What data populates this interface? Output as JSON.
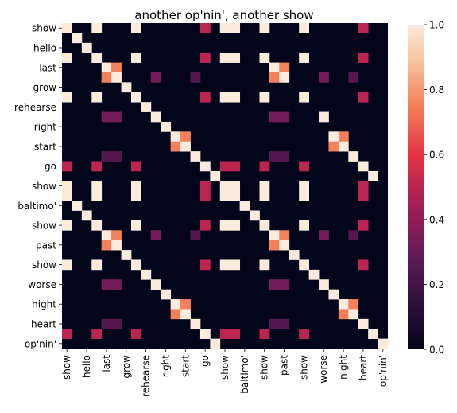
{
  "chart_data": {
    "type": "heatmap",
    "title": "another op'nin', another show",
    "xlabel": "",
    "ylabel": "",
    "x_tick_labels": [
      "show",
      "hello",
      "last",
      "grow",
      "rehearse",
      "right",
      "start",
      "go",
      "show",
      "baltimo'",
      "show",
      "past",
      "show",
      "worse",
      "night",
      "heart",
      "op'nin'"
    ],
    "y_tick_labels": [
      "show",
      "hello",
      "last",
      "grow",
      "rehearse",
      "right",
      "start",
      "go",
      "show",
      "baltimo'",
      "show",
      "past",
      "show",
      "worse",
      "night",
      "heart",
      "op'nin'"
    ],
    "rows": 33,
    "cols": 33,
    "value_range": [
      0.0,
      1.0
    ],
    "colorbar": {
      "ticks": [
        0.0,
        0.2,
        0.4,
        0.6,
        0.8,
        1.0
      ],
      "tick_labels": [
        "0.0",
        "0.2",
        "0.4",
        "0.6",
        "0.8",
        "1.0"
      ],
      "colormap": "rocket"
    },
    "cells": [
      {
        "r": 0,
        "c": 0,
        "v": 1
      },
      {
        "r": 0,
        "c": 3,
        "v": 1
      },
      {
        "r": 0,
        "c": 7,
        "v": 1
      },
      {
        "r": 0,
        "c": 14,
        "v": 0.5
      },
      {
        "r": 0,
        "c": 16,
        "v": 1
      },
      {
        "r": 0,
        "c": 17,
        "v": 1
      },
      {
        "r": 0,
        "c": 20,
        "v": 1
      },
      {
        "r": 0,
        "c": 24,
        "v": 1
      },
      {
        "r": 0,
        "c": 30,
        "v": 0.5
      },
      {
        "r": 1,
        "c": 1,
        "v": 1
      },
      {
        "r": 2,
        "c": 2,
        "v": 1
      },
      {
        "r": 3,
        "c": 0,
        "v": 1
      },
      {
        "r": 3,
        "c": 3,
        "v": 1
      },
      {
        "r": 3,
        "c": 7,
        "v": 1
      },
      {
        "r": 3,
        "c": 14,
        "v": 0.5
      },
      {
        "r": 3,
        "c": 16,
        "v": 1
      },
      {
        "r": 3,
        "c": 17,
        "v": 1
      },
      {
        "r": 3,
        "c": 20,
        "v": 1
      },
      {
        "r": 3,
        "c": 24,
        "v": 1
      },
      {
        "r": 3,
        "c": 30,
        "v": 0.5
      },
      {
        "r": 4,
        "c": 4,
        "v": 1
      },
      {
        "r": 4,
        "c": 5,
        "v": 0.75
      },
      {
        "r": 4,
        "c": 21,
        "v": 1
      },
      {
        "r": 4,
        "c": 22,
        "v": 0.75
      },
      {
        "r": 5,
        "c": 4,
        "v": 0.75
      },
      {
        "r": 5,
        "c": 5,
        "v": 1
      },
      {
        "r": 5,
        "c": 9,
        "v": 0.33
      },
      {
        "r": 5,
        "c": 13,
        "v": 0.25
      },
      {
        "r": 5,
        "c": 21,
        "v": 0.75
      },
      {
        "r": 5,
        "c": 22,
        "v": 1
      },
      {
        "r": 5,
        "c": 26,
        "v": 0.33
      },
      {
        "r": 5,
        "c": 29,
        "v": 0.25
      },
      {
        "r": 6,
        "c": 6,
        "v": 1
      },
      {
        "r": 7,
        "c": 0,
        "v": 1
      },
      {
        "r": 7,
        "c": 3,
        "v": 1
      },
      {
        "r": 7,
        "c": 7,
        "v": 1
      },
      {
        "r": 7,
        "c": 14,
        "v": 0.5
      },
      {
        "r": 7,
        "c": 16,
        "v": 1
      },
      {
        "r": 7,
        "c": 17,
        "v": 1
      },
      {
        "r": 7,
        "c": 20,
        "v": 1
      },
      {
        "r": 7,
        "c": 24,
        "v": 1
      },
      {
        "r": 7,
        "c": 30,
        "v": 0.5
      },
      {
        "r": 8,
        "c": 8,
        "v": 1
      },
      {
        "r": 9,
        "c": 4,
        "v": 0.33
      },
      {
        "r": 9,
        "c": 5,
        "v": 0.33
      },
      {
        "r": 9,
        "c": 9,
        "v": 1
      },
      {
        "r": 9,
        "c": 21,
        "v": 0.33
      },
      {
        "r": 9,
        "c": 22,
        "v": 0.33
      },
      {
        "r": 9,
        "c": 26,
        "v": 1
      },
      {
        "r": 10,
        "c": 10,
        "v": 1
      },
      {
        "r": 11,
        "c": 11,
        "v": 1
      },
      {
        "r": 11,
        "c": 12,
        "v": 0.75
      },
      {
        "r": 11,
        "c": 27,
        "v": 1
      },
      {
        "r": 11,
        "c": 28,
        "v": 0.75
      },
      {
        "r": 12,
        "c": 11,
        "v": 0.75
      },
      {
        "r": 12,
        "c": 12,
        "v": 1
      },
      {
        "r": 12,
        "c": 27,
        "v": 0.75
      },
      {
        "r": 12,
        "c": 28,
        "v": 1
      },
      {
        "r": 13,
        "c": 4,
        "v": 0.25
      },
      {
        "r": 13,
        "c": 5,
        "v": 0.25
      },
      {
        "r": 13,
        "c": 13,
        "v": 1
      },
      {
        "r": 13,
        "c": 21,
        "v": 0.25
      },
      {
        "r": 13,
        "c": 22,
        "v": 0.25
      },
      {
        "r": 13,
        "c": 29,
        "v": 1
      },
      {
        "r": 14,
        "c": 0,
        "v": 0.5
      },
      {
        "r": 14,
        "c": 3,
        "v": 0.5
      },
      {
        "r": 14,
        "c": 7,
        "v": 0.5
      },
      {
        "r": 14,
        "c": 14,
        "v": 1
      },
      {
        "r": 14,
        "c": 16,
        "v": 0.5
      },
      {
        "r": 14,
        "c": 17,
        "v": 0.5
      },
      {
        "r": 14,
        "c": 20,
        "v": 0.5
      },
      {
        "r": 14,
        "c": 24,
        "v": 0.5
      },
      {
        "r": 14,
        "c": 30,
        "v": 1
      },
      {
        "r": 15,
        "c": 15,
        "v": 1
      },
      {
        "r": 15,
        "c": 31,
        "v": 1
      },
      {
        "r": 16,
        "c": 0,
        "v": 1
      },
      {
        "r": 16,
        "c": 3,
        "v": 1
      },
      {
        "r": 16,
        "c": 7,
        "v": 1
      },
      {
        "r": 16,
        "c": 14,
        "v": 0.5
      },
      {
        "r": 16,
        "c": 16,
        "v": 1
      },
      {
        "r": 16,
        "c": 17,
        "v": 1
      },
      {
        "r": 16,
        "c": 20,
        "v": 1
      },
      {
        "r": 16,
        "c": 24,
        "v": 1
      },
      {
        "r": 16,
        "c": 30,
        "v": 0.5
      },
      {
        "r": 17,
        "c": 0,
        "v": 1
      },
      {
        "r": 17,
        "c": 3,
        "v": 1
      },
      {
        "r": 17,
        "c": 7,
        "v": 1
      },
      {
        "r": 17,
        "c": 14,
        "v": 0.5
      },
      {
        "r": 17,
        "c": 16,
        "v": 1
      },
      {
        "r": 17,
        "c": 17,
        "v": 1
      },
      {
        "r": 17,
        "c": 20,
        "v": 1
      },
      {
        "r": 17,
        "c": 24,
        "v": 1
      },
      {
        "r": 17,
        "c": 30,
        "v": 0.5
      },
      {
        "r": 18,
        "c": 1,
        "v": 1
      },
      {
        "r": 18,
        "c": 18,
        "v": 1
      },
      {
        "r": 19,
        "c": 2,
        "v": 1
      },
      {
        "r": 19,
        "c": 19,
        "v": 1
      },
      {
        "r": 20,
        "c": 0,
        "v": 1
      },
      {
        "r": 20,
        "c": 3,
        "v": 1
      },
      {
        "r": 20,
        "c": 7,
        "v": 1
      },
      {
        "r": 20,
        "c": 14,
        "v": 0.5
      },
      {
        "r": 20,
        "c": 16,
        "v": 1
      },
      {
        "r": 20,
        "c": 17,
        "v": 1
      },
      {
        "r": 20,
        "c": 20,
        "v": 1
      },
      {
        "r": 20,
        "c": 24,
        "v": 1
      },
      {
        "r": 20,
        "c": 30,
        "v": 0.5
      },
      {
        "r": 21,
        "c": 4,
        "v": 1
      },
      {
        "r": 21,
        "c": 5,
        "v": 0.75
      },
      {
        "r": 21,
        "c": 9,
        "v": 0.33
      },
      {
        "r": 21,
        "c": 13,
        "v": 0.25
      },
      {
        "r": 21,
        "c": 21,
        "v": 1
      },
      {
        "r": 21,
        "c": 22,
        "v": 0.75
      },
      {
        "r": 21,
        "c": 26,
        "v": 0.33
      },
      {
        "r": 21,
        "c": 29,
        "v": 0.25
      },
      {
        "r": 22,
        "c": 4,
        "v": 0.75
      },
      {
        "r": 22,
        "c": 5,
        "v": 1
      },
      {
        "r": 22,
        "c": 21,
        "v": 0.75
      },
      {
        "r": 22,
        "c": 22,
        "v": 1
      },
      {
        "r": 23,
        "c": 6,
        "v": 1
      },
      {
        "r": 23,
        "c": 23,
        "v": 1
      },
      {
        "r": 24,
        "c": 0,
        "v": 1
      },
      {
        "r": 24,
        "c": 3,
        "v": 1
      },
      {
        "r": 24,
        "c": 7,
        "v": 1
      },
      {
        "r": 24,
        "c": 14,
        "v": 0.5
      },
      {
        "r": 24,
        "c": 16,
        "v": 1
      },
      {
        "r": 24,
        "c": 17,
        "v": 1
      },
      {
        "r": 24,
        "c": 20,
        "v": 1
      },
      {
        "r": 24,
        "c": 24,
        "v": 1
      },
      {
        "r": 24,
        "c": 30,
        "v": 0.5
      },
      {
        "r": 25,
        "c": 8,
        "v": 1
      },
      {
        "r": 25,
        "c": 25,
        "v": 1
      },
      {
        "r": 26,
        "c": 4,
        "v": 0.33
      },
      {
        "r": 26,
        "c": 5,
        "v": 0.33
      },
      {
        "r": 26,
        "c": 9,
        "v": 1
      },
      {
        "r": 26,
        "c": 21,
        "v": 0.33
      },
      {
        "r": 26,
        "c": 22,
        "v": 0.33
      },
      {
        "r": 26,
        "c": 26,
        "v": 1
      },
      {
        "r": 27,
        "c": 10,
        "v": 1
      },
      {
        "r": 27,
        "c": 27,
        "v": 1
      },
      {
        "r": 28,
        "c": 11,
        "v": 1
      },
      {
        "r": 28,
        "c": 12,
        "v": 0.75
      },
      {
        "r": 28,
        "c": 28,
        "v": 1
      },
      {
        "r": 28,
        "c": 29,
        "v": 0.75
      },
      {
        "r": 29,
        "c": 11,
        "v": 0.75
      },
      {
        "r": 29,
        "c": 12,
        "v": 1
      },
      {
        "r": 29,
        "c": 28,
        "v": 0.75
      },
      {
        "r": 29,
        "c": 29,
        "v": 1
      },
      {
        "r": 30,
        "c": 4,
        "v": 0.25
      },
      {
        "r": 30,
        "c": 5,
        "v": 0.25
      },
      {
        "r": 30,
        "c": 13,
        "v": 1
      },
      {
        "r": 30,
        "c": 21,
        "v": 0.25
      },
      {
        "r": 30,
        "c": 22,
        "v": 0.25
      },
      {
        "r": 30,
        "c": 30,
        "v": 1
      },
      {
        "r": 31,
        "c": 0,
        "v": 0.5
      },
      {
        "r": 31,
        "c": 3,
        "v": 0.5
      },
      {
        "r": 31,
        "c": 7,
        "v": 0.5
      },
      {
        "r": 31,
        "c": 14,
        "v": 1
      },
      {
        "r": 31,
        "c": 16,
        "v": 0.5
      },
      {
        "r": 31,
        "c": 17,
        "v": 0.5
      },
      {
        "r": 31,
        "c": 20,
        "v": 0.5
      },
      {
        "r": 31,
        "c": 24,
        "v": 0.5
      },
      {
        "r": 31,
        "c": 31,
        "v": 1
      },
      {
        "r": 32,
        "c": 15,
        "v": 1
      },
      {
        "r": 32,
        "c": 32,
        "v": 1
      }
    ]
  }
}
